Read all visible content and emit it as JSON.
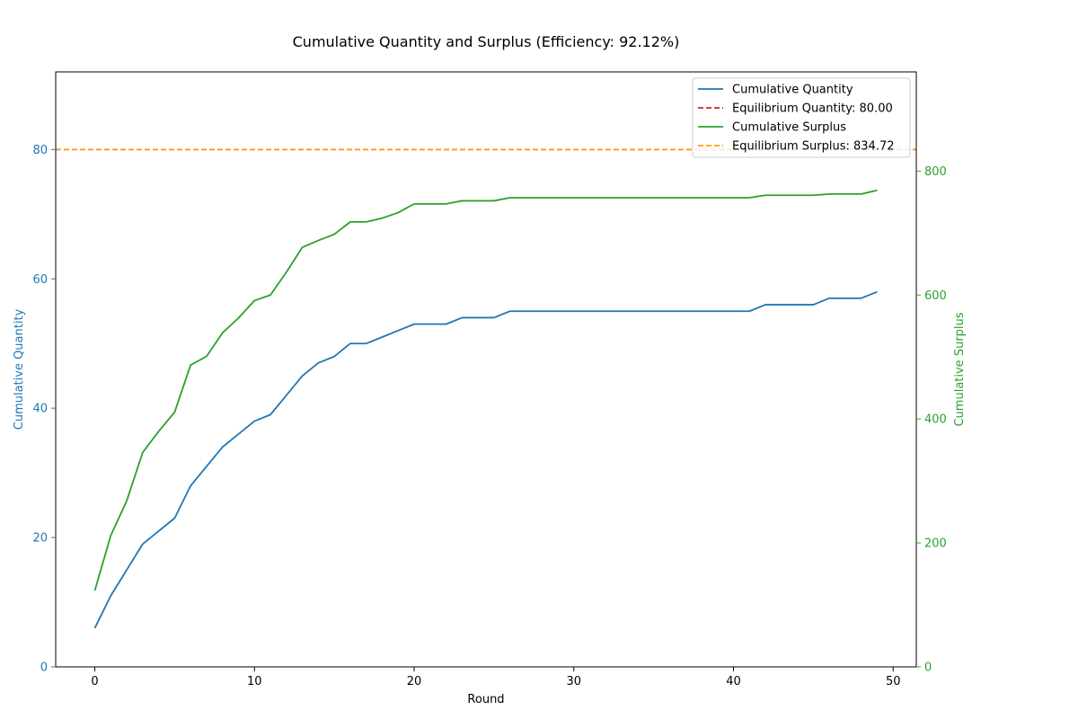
{
  "chart_data": {
    "type": "line",
    "title": "Cumulative Quantity and Surplus (Efficiency: 92.12%)",
    "xlabel": "Round",
    "ylabel_left": "Cumulative Quantity",
    "ylabel_right": "Cumulative Surplus",
    "xlim": [
      -2.45,
      51.45
    ],
    "ylim_left": [
      0,
      92
    ],
    "ylim_right": [
      0,
      960
    ],
    "x_ticks": [
      0,
      10,
      20,
      30,
      40,
      50
    ],
    "y_ticks_left": [
      0,
      20,
      40,
      60,
      80
    ],
    "y_ticks_right": [
      0,
      200,
      400,
      600,
      800
    ],
    "grid": false,
    "legend_position": "top-right",
    "colors": {
      "quantity": "#1f77b4",
      "eq_quantity": "#d62728",
      "surplus": "#2ca02c",
      "eq_surplus": "#ff9f0e"
    },
    "x": [
      0,
      1,
      2,
      3,
      4,
      5,
      6,
      7,
      8,
      9,
      10,
      11,
      12,
      13,
      14,
      15,
      16,
      17,
      18,
      19,
      20,
      21,
      22,
      23,
      24,
      25,
      26,
      27,
      28,
      29,
      30,
      31,
      32,
      33,
      34,
      35,
      36,
      37,
      38,
      39,
      40,
      41,
      42,
      43,
      44,
      45,
      46,
      47,
      48,
      49
    ],
    "series": [
      {
        "name": "Cumulative Quantity",
        "axis": "left",
        "style": "solid",
        "values": [
          6,
          11,
          15,
          19,
          21,
          23,
          28,
          31,
          34,
          36,
          38,
          39,
          42,
          45,
          47,
          48,
          50,
          50,
          51,
          52,
          53,
          53,
          53,
          54,
          54,
          54,
          55,
          55,
          55,
          55,
          55,
          55,
          55,
          55,
          55,
          55,
          55,
          55,
          55,
          55,
          55,
          55,
          56,
          56,
          56,
          56,
          57,
          57,
          57,
          58
        ]
      },
      {
        "name": "Cumulative Surplus",
        "axis": "right",
        "style": "solid",
        "values": [
          123,
          212,
          268,
          346,
          380,
          411,
          487,
          501,
          539,
          563,
          591,
          600,
          637,
          677,
          688,
          698,
          718,
          718,
          724,
          733,
          747,
          747,
          747,
          752,
          752,
          752,
          757,
          757,
          757,
          757,
          757,
          757,
          757,
          757,
          757,
          757,
          757,
          757,
          757,
          757,
          757,
          757,
          761,
          761,
          761,
          761,
          763,
          763,
          763,
          769
        ]
      }
    ],
    "reference_lines": [
      {
        "name": "Equilibrium Quantity: 80.00",
        "axis": "left",
        "value": 80.0,
        "style": "dashed"
      },
      {
        "name": "Equilibrium Surplus: 834.72",
        "axis": "right",
        "value": 834.72,
        "style": "dashed"
      }
    ],
    "legend": [
      {
        "label": "Cumulative Quantity",
        "color_key": "quantity",
        "style": "solid"
      },
      {
        "label": "Equilibrium Quantity: 80.00",
        "color_key": "eq_quantity",
        "style": "dashed"
      },
      {
        "label": "Cumulative Surplus",
        "color_key": "surplus",
        "style": "solid"
      },
      {
        "label": "Equilibrium Surplus: 834.72",
        "color_key": "eq_surplus",
        "style": "dashed"
      }
    ]
  }
}
